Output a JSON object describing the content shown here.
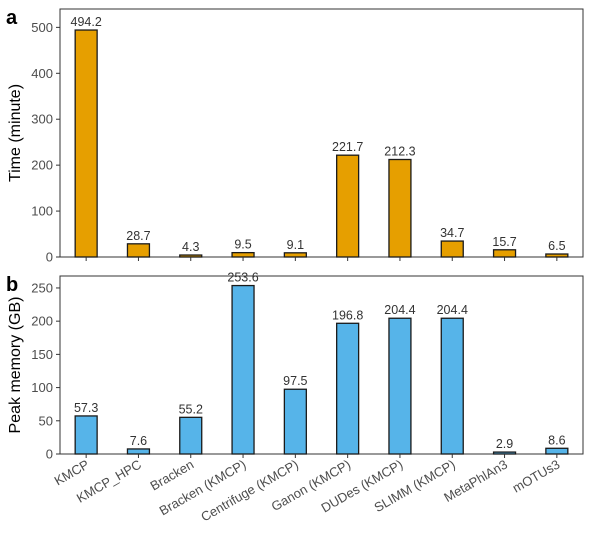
{
  "chart_data": [
    {
      "type": "bar",
      "panel_tag": "a",
      "ylabel": "Time (minute)",
      "categories": [
        "KMCP",
        "KMCP_HPC",
        "Bracken",
        "Bracken (KMCP)",
        "Centrifuge (KMCP)",
        "Ganon (KMCP)",
        "DUDes (KMCP)",
        "SLIMM (KMCP)",
        "MetaPhlAn3",
        "mOTUs3"
      ],
      "values": [
        494.2,
        28.7,
        4.3,
        9.5,
        9.1,
        221.7,
        212.3,
        34.7,
        15.7,
        6.5
      ],
      "value_labels": [
        "494.2",
        "28.7",
        "4.3",
        "9.5",
        "9.1",
        "221.7",
        "212.3",
        "34.7",
        "15.7",
        "6.5"
      ],
      "ylim": [
        0,
        540
      ],
      "yticks": [
        0,
        100,
        200,
        300,
        400,
        500
      ],
      "color": "#E69F00",
      "show_category_labels": false
    },
    {
      "type": "bar",
      "panel_tag": "b",
      "ylabel": "Peak memory (GB)",
      "categories": [
        "KMCP",
        "KMCP_HPC",
        "Bracken",
        "Bracken (KMCP)",
        "Centrifuge (KMCP)",
        "Ganon (KMCP)",
        "DUDes (KMCP)",
        "SLIMM (KMCP)",
        "MetaPhlAn3",
        "mOTUs3"
      ],
      "values": [
        57.3,
        7.6,
        55.2,
        253.6,
        97.5,
        196.8,
        204.4,
        204.4,
        2.9,
        8.6
      ],
      "value_labels": [
        "57.3",
        "7.6",
        "55.2",
        "253.6",
        "97.5",
        "196.8",
        "204.4",
        "204.4",
        "2.9",
        "8.6"
      ],
      "ylim": [
        0,
        268
      ],
      "yticks": [
        0,
        50,
        100,
        150,
        200,
        250
      ],
      "color": "#56B4E9",
      "show_category_labels": true
    }
  ]
}
